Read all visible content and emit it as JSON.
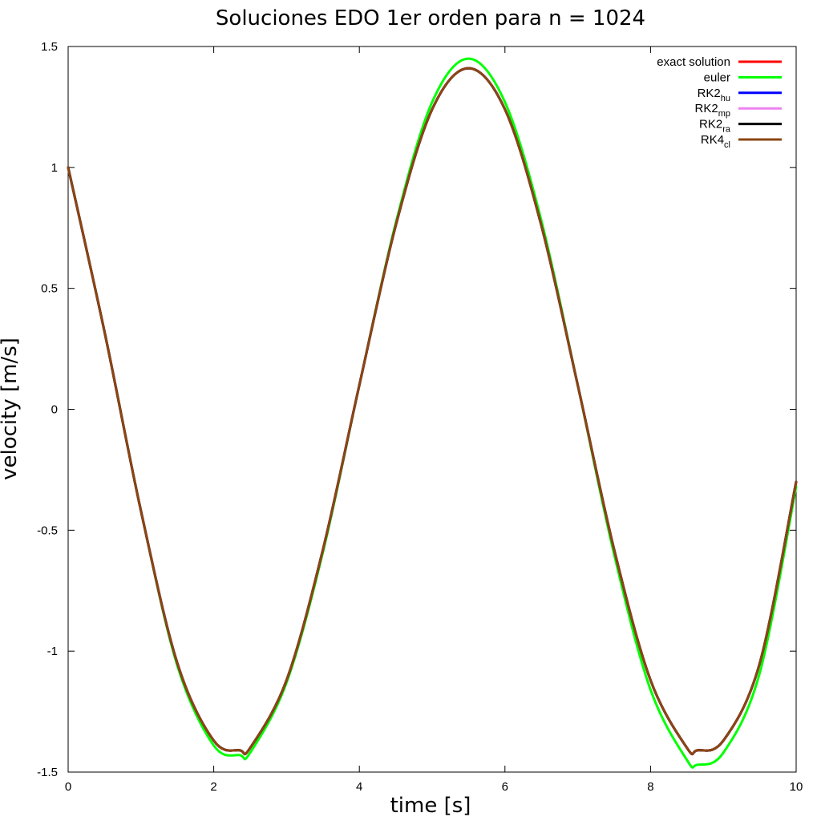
{
  "chart_data": {
    "type": "line",
    "title": "Soluciones EDO 1er orden para n = 1024",
    "xlabel": "time [s]",
    "ylabel": "velocity [m/s]",
    "xlim": [
      0,
      10
    ],
    "ylim": [
      -1.5,
      1.5
    ],
    "x_ticks": [
      "0",
      "2",
      "4",
      "6",
      "8",
      "10"
    ],
    "x_tick_values": [
      0,
      2,
      4,
      6,
      8,
      10
    ],
    "y_ticks": [
      "1.5",
      "1",
      "0.5",
      "0",
      "-0.5",
      "-1",
      "-1.5"
    ],
    "y_tick_values": [
      1.5,
      1,
      0.5,
      0,
      -0.5,
      -1,
      -1.5
    ],
    "grid": false,
    "legend_position": "top-right",
    "x": [
      0,
      0.5,
      1,
      1.5,
      2,
      2.36,
      2.5,
      3,
      3.5,
      4,
      4.5,
      5,
      5.5,
      6,
      6.5,
      7,
      7.5,
      8,
      8.5,
      8.64,
      9,
      9.5,
      10
    ],
    "series": [
      {
        "name": "exact solution",
        "color": "#ff0000",
        "values": [
          1,
          0.32,
          -0.42,
          -1.05,
          -1.37,
          -1.41,
          -1.4,
          -1.12,
          -0.58,
          0.1,
          0.76,
          1.24,
          1.41,
          1.24,
          0.76,
          0.1,
          -0.58,
          -1.12,
          -1.4,
          -1.41,
          -1.37,
          -1.05,
          -0.3
        ]
      },
      {
        "name": "euler",
        "color": "#00ff00",
        "values": [
          1,
          0.32,
          -0.42,
          -1.06,
          -1.39,
          -1.43,
          -1.42,
          -1.13,
          -0.59,
          0.1,
          0.77,
          1.27,
          1.45,
          1.27,
          0.78,
          0.1,
          -0.6,
          -1.16,
          -1.45,
          -1.47,
          -1.42,
          -1.09,
          -0.32
        ]
      },
      {
        "name": "RK2",
        "label_sub": "hu",
        "color": "#0000ff",
        "values": [
          1,
          0.32,
          -0.42,
          -1.05,
          -1.37,
          -1.41,
          -1.4,
          -1.12,
          -0.58,
          0.1,
          0.76,
          1.24,
          1.41,
          1.24,
          0.76,
          0.1,
          -0.58,
          -1.12,
          -1.4,
          -1.41,
          -1.37,
          -1.05,
          -0.3
        ]
      },
      {
        "name": "RK2",
        "label_sub": "mp",
        "color": "#ee82ee",
        "values": [
          1,
          0.32,
          -0.42,
          -1.05,
          -1.37,
          -1.41,
          -1.4,
          -1.12,
          -0.58,
          0.1,
          0.76,
          1.24,
          1.41,
          1.24,
          0.76,
          0.1,
          -0.58,
          -1.12,
          -1.4,
          -1.41,
          -1.37,
          -1.05,
          -0.3
        ]
      },
      {
        "name": "RK2",
        "label_sub": "ra",
        "color": "#000000",
        "values": [
          1,
          0.32,
          -0.42,
          -1.05,
          -1.37,
          -1.41,
          -1.4,
          -1.12,
          -0.58,
          0.1,
          0.76,
          1.24,
          1.41,
          1.24,
          0.76,
          0.1,
          -0.58,
          -1.12,
          -1.4,
          -1.41,
          -1.37,
          -1.05,
          -0.3
        ]
      },
      {
        "name": "RK4",
        "label_sub": "cl",
        "color": "#8b4513",
        "values": [
          1,
          0.32,
          -0.42,
          -1.05,
          -1.37,
          -1.41,
          -1.4,
          -1.12,
          -0.58,
          0.1,
          0.76,
          1.24,
          1.41,
          1.24,
          0.76,
          0.1,
          -0.58,
          -1.12,
          -1.4,
          -1.41,
          -1.37,
          -1.05,
          -0.3
        ]
      }
    ]
  }
}
